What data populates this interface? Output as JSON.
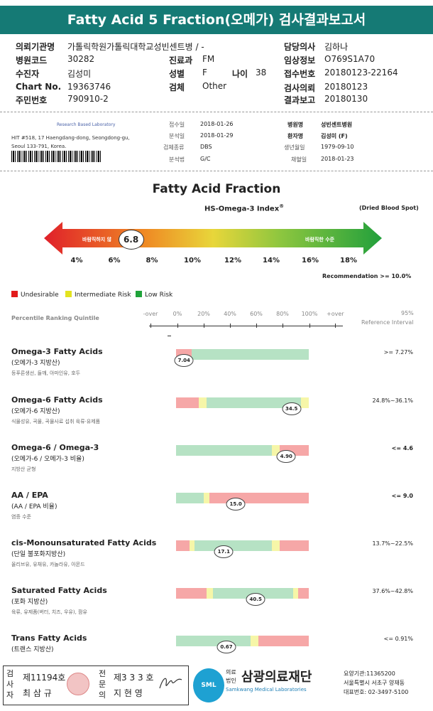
{
  "header": {
    "title": "Fatty Acid 5 Fraction(오메가) 검사결과보고서"
  },
  "patient_info": {
    "c1": [
      {
        "label": "의뢰기관명",
        "value": "가톨릭학원가톨릭대학교성빈센트병 / -"
      },
      {
        "label": "병원코드",
        "value": "30282"
      },
      {
        "label": "수진자",
        "value": "김성미"
      },
      {
        "label": "Chart No.",
        "value": "19363746"
      },
      {
        "label": "주민번호",
        "value": "790910-2"
      }
    ],
    "c2": [
      {
        "label": "진료과",
        "value": "FM"
      },
      {
        "label": "성별",
        "value": "F"
      },
      {
        "label": "검체",
        "value": "Other"
      }
    ],
    "age": {
      "label": "나이",
      "value": "38"
    },
    "c3": [
      {
        "label": "담당의사",
        "value": "김하나"
      },
      {
        "label": "임상정보",
        "value": "O769S1A70"
      },
      {
        "label": "접수번호",
        "value": "20180123-22164"
      },
      {
        "label": "검사의뢰",
        "value": "20180123"
      },
      {
        "label": "결과보고",
        "value": "20180130"
      }
    ]
  },
  "lab": {
    "name": "Research Based Laboratory",
    "address1": "HIT #518, 17 Haengdang-dong, Seongdong-gu,",
    "address2": "Seoul 133-791, Korea."
  },
  "sample_info": {
    "left": [
      {
        "label": "접수일",
        "value": "2018-01-26"
      },
      {
        "label": "분석일",
        "value": "2018-01-29"
      },
      {
        "label": "검체종류",
        "value": "DBS"
      },
      {
        "label": "분석법",
        "value": "G/C"
      }
    ],
    "right": [
      {
        "label": "병원명",
        "value": "성빈센트병원"
      },
      {
        "label": "환자명",
        "value": "김성미 (F)"
      },
      {
        "label": "생년월일",
        "value": "1979-09-10"
      },
      {
        "label": "채혈일",
        "value": "2018-01-23"
      }
    ]
  },
  "omega_index": {
    "title": "Fatty Acid Fraction",
    "subtitle": "HS-Omega-3 Index",
    "sup": "®",
    "sample_note": "(Dried Blood Spot)",
    "left_label": "바람직하지 않",
    "right_label": "바람직한 수준",
    "value": 6.8,
    "value_label": "6.8",
    "ticks": [
      "4%",
      "6%",
      "8%",
      "10%",
      "12%",
      "14%",
      "16%",
      "18%"
    ],
    "recommendation": "Recommendation  >= 10.0%"
  },
  "legend": [
    {
      "label": "Undesirable",
      "color": "#e21b1b"
    },
    {
      "label": "Intermediate Risk",
      "color": "#e3e31f"
    },
    {
      "label": "Low Risk",
      "color": "#1fa33a"
    }
  ],
  "scale": {
    "title": "Percentile Ranking Quintile",
    "ticks": [
      "-over",
      "0%",
      "20%",
      "40%",
      "60%",
      "80%",
      "100%",
      "+over"
    ],
    "ref_header1": "95%",
    "ref_header2": "Reference Interval"
  },
  "rows": [
    {
      "name": "Omega-3 Fatty Acids",
      "kor": "(오메가-3 지방산)",
      "desc": "등푸른생선, 들깨, 아마인유, 호두",
      "value_label": "7.04",
      "ref": ">= 7.27%",
      "ref_bold": false,
      "marker_pct": 6,
      "segments": [
        [
          12,
          "#f6a7a7"
        ],
        [
          88,
          "#b6e2c4"
        ]
      ]
    },
    {
      "name": "Omega-6 Fatty Acids",
      "kor": "(오메가-6 지방산)",
      "desc": "식물성유, 곡물, 곡물사료 섭취 육류·유제품",
      "value_label": "34.5",
      "ref": "24.8%~36.1%",
      "ref_bold": false,
      "marker_pct": 87,
      "segments": [
        [
          17,
          "#f6a7a7"
        ],
        [
          6,
          "#f6f6a8"
        ],
        [
          71,
          "#b6e2c4"
        ],
        [
          6,
          "#f6f6a8"
        ]
      ]
    },
    {
      "name": "Omega-6 / Omega-3",
      "kor": "(오메가-6 / 오메가-3 비율)",
      "desc": "지방산 균형",
      "value_label": "4.90",
      "ref": "<= 4.6",
      "ref_bold": true,
      "marker_pct": 83,
      "segments": [
        [
          72,
          "#b6e2c4"
        ],
        [
          6,
          "#f6f6a8"
        ],
        [
          22,
          "#f6a7a7"
        ]
      ]
    },
    {
      "name": "AA / EPA",
      "kor": "(AA / EPA 비율)",
      "desc": "염증 수준",
      "value_label": "15.0",
      "ref": "<= 9.0",
      "ref_bold": true,
      "marker_pct": 45,
      "segments": [
        [
          21,
          "#b6e2c4"
        ],
        [
          4,
          "#f6f6a8"
        ],
        [
          75,
          "#f6a7a7"
        ]
      ]
    },
    {
      "name": "cis-Monounsaturated Fatty Acids",
      "kor": "(단일 불포화지방산)",
      "desc": "올리브유, 유채유, 카놀라유, 아몬드",
      "value_label": "17.1",
      "ref": "13.7%~22.5%",
      "ref_bold": false,
      "marker_pct": 36,
      "segments": [
        [
          10,
          "#f6a7a7"
        ],
        [
          4,
          "#f6f6a8"
        ],
        [
          58,
          "#b6e2c4"
        ],
        [
          6,
          "#f6f6a8"
        ],
        [
          22,
          "#f6a7a7"
        ]
      ]
    },
    {
      "name": "Saturated Fatty Acids",
      "kor": "(포화 지방산)",
      "desc": "육류, 유제품(버터, 치즈, 우유), 팜유",
      "value_label": "40.5",
      "ref": "37.6%~42.8%",
      "ref_bold": false,
      "marker_pct": 60,
      "segments": [
        [
          23,
          "#f6a7a7"
        ],
        [
          5,
          "#f6f6a8"
        ],
        [
          60,
          "#b6e2c4"
        ],
        [
          4,
          "#f6f6a8"
        ],
        [
          8,
          "#f6a7a7"
        ]
      ]
    },
    {
      "name": "Trans Fatty Acids",
      "kor": "(트랜스 지방산)",
      "desc": "",
      "value_label": "0.67",
      "ref": "<= 0.91%",
      "ref_bold": false,
      "marker_pct": 38,
      "segments": [
        [
          56,
          "#b6e2c4"
        ],
        [
          6,
          "#f6f6a8"
        ],
        [
          38,
          "#f6a7a7"
        ]
      ]
    }
  ],
  "footer": {
    "v1": "검사자",
    "r1_no": "제11194호",
    "r1_name": "최 삼 규",
    "v2": "전문의",
    "r2_no": "제3 3 3 호",
    "r2_name": "지 현 영",
    "org_small1": "의료",
    "org_small2": "법인",
    "org_name": "삼광의료재단",
    "org_en": "Samkwang Medical Laboratories",
    "logo": "SML",
    "code": "요양기관:11365200",
    "address": "서울특별시 서초구 양재동",
    "phone": "대표번호: 02-3497-5100"
  }
}
